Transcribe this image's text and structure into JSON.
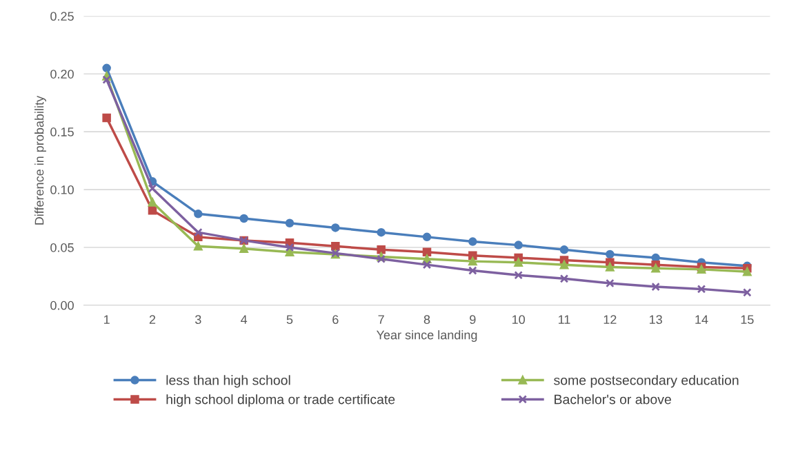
{
  "chart_data": {
    "type": "line",
    "xlabel": "Year since landing",
    "ylabel": "Difference in probability",
    "categories": [
      "1",
      "2",
      "3",
      "4",
      "5",
      "6",
      "7",
      "8",
      "9",
      "10",
      "11",
      "12",
      "13",
      "14",
      "15"
    ],
    "ylim": [
      0,
      0.25
    ],
    "yticks": [
      {
        "value": 0,
        "label": "0.00"
      },
      {
        "value": 0.05,
        "label": "0.05"
      },
      {
        "value": 0.1,
        "label": "0.10"
      },
      {
        "value": 0.15,
        "label": "0.15"
      },
      {
        "value": 0.2,
        "label": "0.20"
      },
      {
        "value": 0.25,
        "label": "0.25"
      }
    ],
    "grid": "y",
    "legend": "bottom",
    "line_style": "solid",
    "series": [
      {
        "name": "less than high school",
        "color": "#4a7ebb",
        "marker": "circle",
        "values": [
          0.205,
          0.107,
          0.079,
          0.075,
          0.071,
          0.067,
          0.063,
          0.059,
          0.055,
          0.052,
          0.048,
          0.044,
          0.041,
          0.037,
          0.034
        ]
      },
      {
        "name": "high school diploma or trade certificate",
        "color": "#be4b48",
        "marker": "square",
        "values": [
          0.162,
          0.082,
          0.059,
          0.056,
          0.054,
          0.051,
          0.048,
          0.046,
          0.043,
          0.041,
          0.039,
          0.037,
          0.035,
          0.033,
          0.032
        ]
      },
      {
        "name": "some postsecondary education",
        "color": "#98b954",
        "marker": "triangle",
        "values": [
          0.198,
          0.089,
          0.051,
          0.049,
          0.046,
          0.044,
          0.042,
          0.04,
          0.038,
          0.037,
          0.035,
          0.033,
          0.032,
          0.031,
          0.029
        ]
      },
      {
        "name": "Bachelor's or above",
        "color": "#7d60a0",
        "marker": "cross",
        "values": [
          0.195,
          0.101,
          0.063,
          0.056,
          0.05,
          0.045,
          0.04,
          0.035,
          0.03,
          0.026,
          0.023,
          0.019,
          0.016,
          0.014,
          0.011
        ]
      }
    ]
  }
}
